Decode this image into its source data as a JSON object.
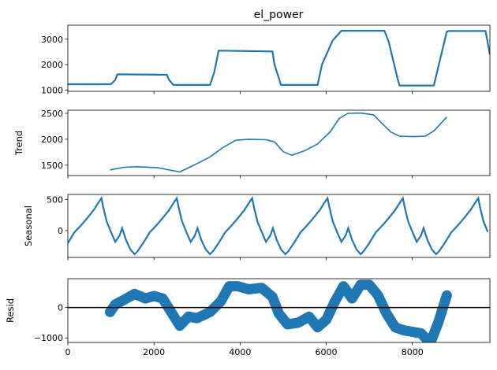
{
  "chart_data": [
    {
      "type": "line",
      "title": "el_power",
      "xlabel": "",
      "ylabel": "",
      "xlim": [
        0,
        9800
      ],
      "ylim": [
        950,
        3550
      ],
      "xticks": [
        0,
        2000,
        4000,
        6000,
        8000
      ],
      "yticks": [
        1000,
        2000,
        3000
      ],
      "ytick_labels": [
        "1000",
        "2000",
        "3000"
      ],
      "show_xtick_labels": false,
      "grid": false,
      "color": "#1f77b4",
      "series": [
        {
          "x": [
            0,
            1000,
            1100,
            1150,
            2300,
            2350,
            2450,
            3300,
            3400,
            3500,
            4750,
            4800,
            4950,
            5800,
            5900,
            6150,
            6350,
            7350,
            7450,
            7650,
            7700,
            8500,
            8600,
            8800,
            8850,
            9700,
            9800
          ],
          "y": [
            1230,
            1230,
            1400,
            1620,
            1600,
            1400,
            1200,
            1200,
            1700,
            2550,
            2520,
            2000,
            1200,
            1200,
            2000,
            2950,
            3330,
            3330,
            2900,
            1500,
            1180,
            1180,
            1900,
            3300,
            3320,
            3320,
            2400
          ]
        }
      ]
    },
    {
      "type": "line",
      "title": "",
      "xlabel": "",
      "ylabel": "Trend",
      "xlim": [
        0,
        9800
      ],
      "ylim": [
        1300,
        2560
      ],
      "xticks": [
        0,
        2000,
        4000,
        6000,
        8000
      ],
      "yticks": [
        1500,
        2000,
        2500
      ],
      "ytick_labels": [
        "1500",
        "2000",
        "2500"
      ],
      "show_xtick_labels": false,
      "grid": false,
      "color": "#1f77b4",
      "series": [
        {
          "x": [
            980,
            1300,
            1600,
            2100,
            2400,
            2600,
            2800,
            3000,
            3300,
            3600,
            3900,
            4200,
            4600,
            4800,
            5000,
            5200,
            5500,
            5800,
            6100,
            6300,
            6500,
            6800,
            7100,
            7300,
            7500,
            7700,
            8000,
            8300,
            8500,
            8800
          ],
          "y": [
            1410,
            1460,
            1470,
            1450,
            1400,
            1370,
            1450,
            1530,
            1660,
            1840,
            1980,
            2000,
            1990,
            1950,
            1760,
            1690,
            1780,
            1910,
            2150,
            2400,
            2500,
            2505,
            2470,
            2300,
            2140,
            2060,
            2050,
            2060,
            2160,
            2430
          ]
        }
      ]
    },
    {
      "type": "line",
      "title": "",
      "xlabel": "",
      "ylabel": "Seasonal",
      "xlim": [
        0,
        9800
      ],
      "ylim": [
        -430,
        580
      ],
      "xticks": [
        0,
        2000,
        4000,
        6000,
        8000
      ],
      "yticks": [
        0,
        500
      ],
      "ytick_labels": [
        "0",
        "500"
      ],
      "show_xtick_labels": false,
      "grid": false,
      "color": "#1f77b4",
      "period": 1750,
      "series": [
        {
          "cycle_x": [
            0,
            150,
            300,
            450,
            600,
            700,
            780,
            820,
            900,
            1000,
            1100,
            1200,
            1260,
            1350,
            1450,
            1550,
            1620,
            1750
          ],
          "cycle_y": [
            -200,
            -30,
            80,
            200,
            330,
            440,
            520,
            380,
            150,
            -20,
            -180,
            -80,
            40,
            -150,
            -300,
            -380,
            -330,
            -200
          ]
        }
      ]
    },
    {
      "type": "scatter",
      "title": "",
      "xlabel": "",
      "ylabel": "Resid",
      "xlim": [
        0,
        9800
      ],
      "ylim": [
        -1150,
        950
      ],
      "xticks": [
        0,
        2000,
        4000,
        6000,
        8000
      ],
      "xtick_labels": [
        "0",
        "2000",
        "4000",
        "6000",
        "8000"
      ],
      "yticks": [
        -1000,
        0
      ],
      "ytick_labels": [
        "−1000",
        "0"
      ],
      "show_xtick_labels": true,
      "grid": false,
      "color": "#1f77b4",
      "hline": 0,
      "series": [
        {
          "x": [
            980,
            1100,
            1300,
            1550,
            1800,
            2000,
            2200,
            2400,
            2600,
            2800,
            3000,
            3300,
            3550,
            3750,
            3950,
            4200,
            4500,
            4750,
            4900,
            5100,
            5350,
            5600,
            5800,
            6000,
            6200,
            6400,
            6600,
            6800,
            7000,
            7200,
            7400,
            7600,
            7800,
            8000,
            8200,
            8300,
            8450,
            8600,
            8800
          ],
          "y": [
            -150,
            100,
            250,
            450,
            300,
            380,
            300,
            -150,
            -600,
            -300,
            -350,
            -150,
            200,
            700,
            700,
            600,
            650,
            350,
            -200,
            -550,
            -500,
            -300,
            -650,
            -400,
            200,
            700,
            300,
            750,
            750,
            400,
            -200,
            -650,
            -750,
            -800,
            -850,
            -1000,
            -1050,
            -500,
            400
          ]
        }
      ]
    }
  ]
}
